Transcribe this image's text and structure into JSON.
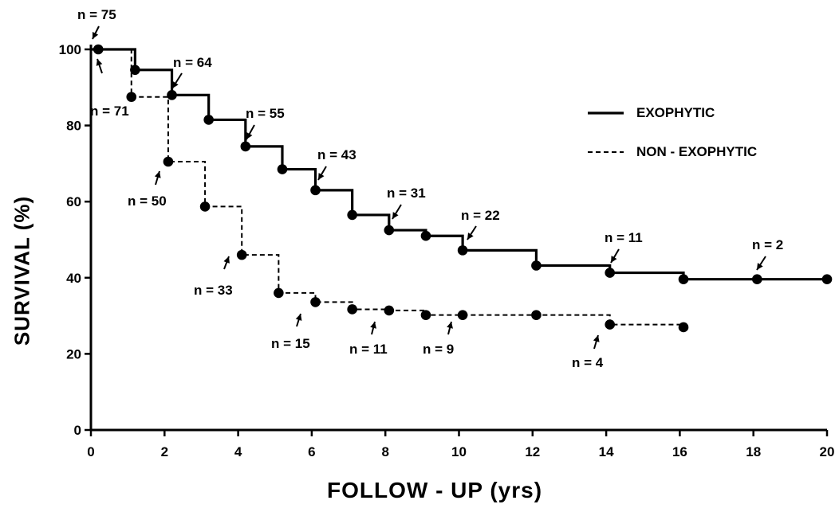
{
  "chart_data": {
    "type": "line",
    "title": "",
    "xlabel": "FOLLOW - UP (yrs)",
    "ylabel": "SURVIVAL (%)",
    "xlim": [
      0,
      20
    ],
    "ylim": [
      0,
      100
    ],
    "xticks": [
      0,
      2,
      4,
      6,
      8,
      10,
      12,
      14,
      16,
      18,
      20
    ],
    "yticks": [
      0,
      20,
      40,
      60,
      80,
      100
    ],
    "grid": false,
    "legend_position": "top-right",
    "series": [
      {
        "name": "EXOPHYTIC",
        "style": "solid",
        "step": true,
        "x": [
          0,
          0.2,
          1.2,
          2.2,
          3.2,
          4.2,
          5.2,
          6.1,
          7.1,
          8.1,
          9.1,
          10.1,
          12.1,
          14.1,
          16.1,
          18.1,
          20
        ],
        "y": [
          100,
          100,
          94.6,
          88,
          81.5,
          74.5,
          68.5,
          63,
          56.5,
          52.5,
          51,
          47.2,
          43.2,
          41.3,
          39.6,
          39.6,
          39.6
        ],
        "markers": [
          0.2,
          1.2,
          2.2,
          3.2,
          4.2,
          5.2,
          6.1,
          7.1,
          8.1,
          9.1,
          10.1,
          12.1,
          14.1,
          16.1,
          18.1,
          20
        ]
      },
      {
        "name": "NON - EXOPHYTIC",
        "style": "dashed",
        "step": true,
        "x": [
          0,
          0.2,
          1.1,
          2.1,
          3.1,
          4.1,
          5.1,
          6.1,
          7.1,
          8.1,
          9.1,
          10.1,
          12.1,
          14.1,
          16.1
        ],
        "y": [
          100,
          100,
          87.5,
          70.5,
          58.7,
          46,
          36,
          33.6,
          31.7,
          31.4,
          30.2,
          30.2,
          30.2,
          27.7,
          27
        ],
        "markers": [
          1.1,
          2.1,
          3.1,
          4.1,
          5.1,
          6.1,
          7.1,
          8.1,
          9.1,
          10.1,
          12.1,
          14.1,
          16.1
        ]
      }
    ],
    "annotations": [
      {
        "text": "n = 75",
        "series": "EXOPHYTIC",
        "x": 0.2,
        "y": 100
      },
      {
        "text": "n = 64",
        "series": "EXOPHYTIC",
        "x": 2.2,
        "y": 88
      },
      {
        "text": "n = 55",
        "series": "EXOPHYTIC",
        "x": 4.2,
        "y": 74.5
      },
      {
        "text": "n = 43",
        "series": "EXOPHYTIC",
        "x": 6.1,
        "y": 63
      },
      {
        "text": "n = 31",
        "series": "EXOPHYTIC",
        "x": 8.1,
        "y": 52.5
      },
      {
        "text": "n = 22",
        "series": "EXOPHYTIC",
        "x": 10.1,
        "y": 47.2
      },
      {
        "text": "n = 11",
        "series": "EXOPHYTIC",
        "x": 14.1,
        "y": 41.3
      },
      {
        "text": "n = 2",
        "series": "EXOPHYTIC",
        "x": 18.1,
        "y": 39.6
      },
      {
        "text": "n = 71",
        "series": "NON - EXOPHYTIC",
        "x": 0.2,
        "y": 100
      },
      {
        "text": "n = 50",
        "series": "NON - EXOPHYTIC",
        "x": 2.1,
        "y": 70.5
      },
      {
        "text": "n = 33",
        "series": "NON - EXOPHYTIC",
        "x": 4.1,
        "y": 46
      },
      {
        "text": "n = 15",
        "series": "NON - EXOPHYTIC",
        "x": 6.1,
        "y": 33.6
      },
      {
        "text": "n = 11",
        "series": "NON - EXOPHYTIC",
        "x": 8.1,
        "y": 31.4
      },
      {
        "text": "n = 9",
        "series": "NON - EXOPHYTIC",
        "x": 10.1,
        "y": 30.2
      },
      {
        "text": "n = 4",
        "series": "NON - EXOPHYTIC",
        "x": 14.1,
        "y": 27.7
      }
    ]
  }
}
